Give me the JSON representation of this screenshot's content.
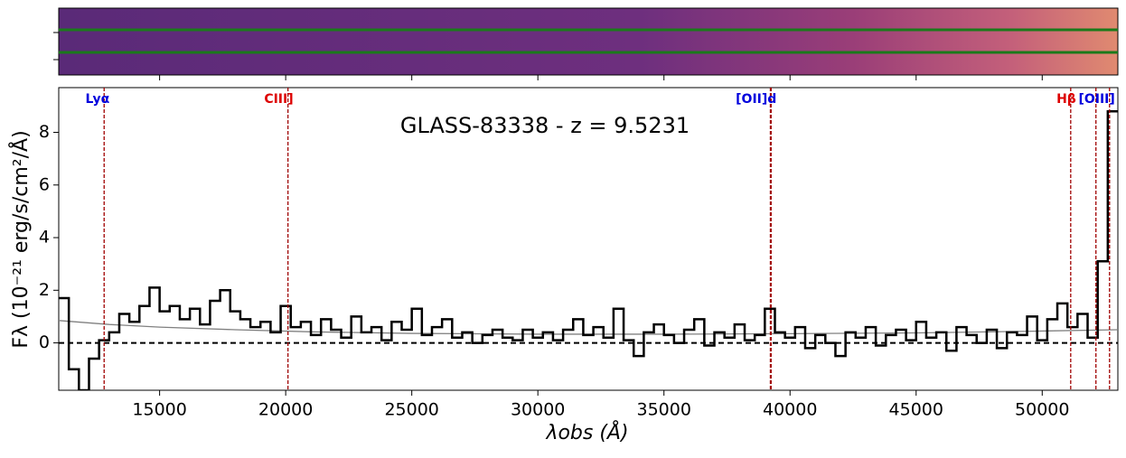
{
  "chart_data": {
    "type": "step",
    "title": "GLASS-83338 - z = 9.5231",
    "x_label": "λobs (Å)",
    "y_label": "Fλ (10⁻²¹ erg/s/cm²/Å)",
    "xlim": [
      11000,
      53000
    ],
    "ylim": [
      -1.8,
      9.7
    ],
    "xticks": [
      15000,
      20000,
      25000,
      30000,
      35000,
      40000,
      45000,
      50000
    ],
    "yticks": [
      0,
      2,
      4,
      6,
      8
    ],
    "hline": 0,
    "x": [
      11200,
      11600,
      12000,
      12400,
      12800,
      13200,
      13600,
      14000,
      14400,
      14800,
      15200,
      15600,
      16000,
      16400,
      16800,
      17200,
      17600,
      18000,
      18400,
      18800,
      19200,
      19600,
      20000,
      20400,
      20800,
      21200,
      21600,
      22000,
      22400,
      22800,
      23200,
      23600,
      24000,
      24400,
      24800,
      25200,
      25600,
      26000,
      26400,
      26800,
      27200,
      27600,
      28000,
      28400,
      28800,
      29200,
      29600,
      30000,
      30400,
      30800,
      31200,
      31600,
      32000,
      32400,
      32800,
      33200,
      33600,
      34000,
      34400,
      34800,
      35200,
      35600,
      36000,
      36400,
      36800,
      37200,
      37600,
      38000,
      38400,
      38800,
      39200,
      39600,
      40000,
      40400,
      40800,
      41200,
      41600,
      42000,
      42400,
      42800,
      43200,
      43600,
      44000,
      44400,
      44800,
      45200,
      45600,
      46000,
      46400,
      46800,
      47200,
      47600,
      48000,
      48400,
      48800,
      49200,
      49600,
      50000,
      50400,
      50800,
      51200,
      51600,
      52000,
      52400,
      52800
    ],
    "series": [
      {
        "name": "spectrum",
        "color": "#000000",
        "values": [
          1.7,
          -1.0,
          -1.8,
          -0.6,
          0.1,
          0.4,
          1.1,
          0.8,
          1.4,
          2.1,
          1.2,
          1.4,
          0.9,
          1.3,
          0.7,
          1.6,
          2.0,
          1.2,
          0.9,
          0.6,
          0.8,
          0.4,
          1.4,
          0.6,
          0.8,
          0.3,
          0.9,
          0.5,
          0.2,
          1.0,
          0.4,
          0.6,
          0.1,
          0.8,
          0.5,
          1.3,
          0.3,
          0.6,
          0.9,
          0.2,
          0.4,
          0.0,
          0.3,
          0.5,
          0.2,
          0.1,
          0.5,
          0.2,
          0.4,
          0.1,
          0.5,
          0.9,
          0.3,
          0.6,
          0.2,
          1.3,
          0.1,
          -0.5,
          0.4,
          0.7,
          0.3,
          0.0,
          0.5,
          0.9,
          -0.1,
          0.4,
          0.2,
          0.7,
          0.1,
          0.3,
          1.3,
          0.4,
          0.2,
          0.6,
          -0.2,
          0.3,
          0.0,
          -0.5,
          0.4,
          0.2,
          0.6,
          -0.1,
          0.3,
          0.5,
          0.1,
          0.8,
          0.2,
          0.4,
          -0.3,
          0.6,
          0.3,
          0.0,
          0.5,
          -0.2,
          0.4,
          0.3,
          1.0,
          0.1,
          0.9,
          1.5,
          0.6,
          1.1,
          0.2,
          3.1,
          8.8
        ]
      }
    ],
    "model": {
      "color": "#808080",
      "x": [
        11000,
        13000,
        15000,
        18000,
        21000,
        25000,
        30000,
        35000,
        40000,
        45000,
        50000,
        53000
      ],
      "values": [
        0.85,
        0.7,
        0.6,
        0.5,
        0.42,
        0.36,
        0.33,
        0.33,
        0.35,
        0.38,
        0.45,
        0.5
      ]
    },
    "lines": [
      {
        "label": "Lyα",
        "color": "#0000dd",
        "wavelengths": [
          12800
        ]
      },
      {
        "label": "CIII]",
        "color": "#dd0000",
        "wavelengths": [
          20090
        ]
      },
      {
        "label": "[OII]d",
        "color": "#0000dd",
        "wavelengths": [
          39220,
          39250
        ]
      },
      {
        "label": "Hβ",
        "color": "#dd0000",
        "wavelengths": [
          51130
        ]
      },
      {
        "label": "[OIII]",
        "color": "#0000dd",
        "wavelengths": [
          52130,
          52670
        ]
      }
    ]
  }
}
